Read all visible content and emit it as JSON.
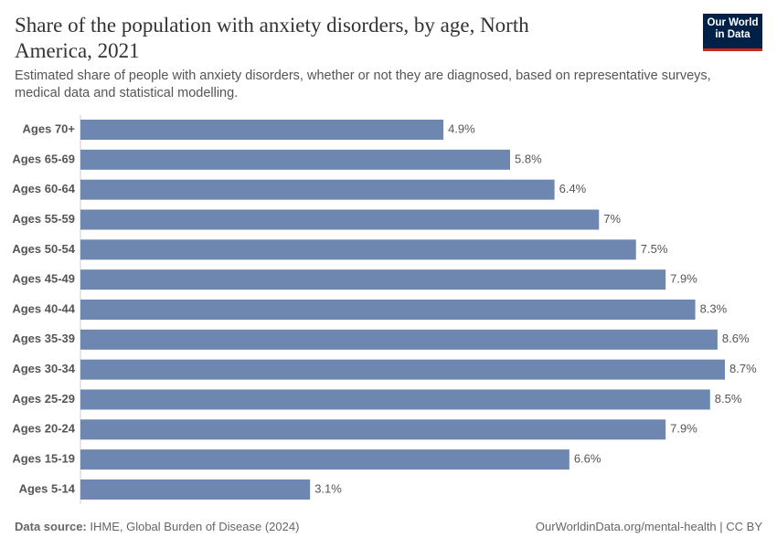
{
  "chart_data": {
    "type": "bar",
    "orientation": "horizontal",
    "title": "Share of the population with anxiety disorders, by age, North America, 2021",
    "subtitle": "Estimated share of people with anxiety disorders, whether or not they are diagnosed, based on representative surveys, medical data and statistical modelling.",
    "categories": [
      "Ages 70+",
      "Ages 65-69",
      "Ages 60-64",
      "Ages 55-59",
      "Ages 50-54",
      "Ages 45-49",
      "Ages 40-44",
      "Ages 35-39",
      "Ages 30-34",
      "Ages 25-29",
      "Ages 20-24",
      "Ages 15-19",
      "Ages 5-14"
    ],
    "values": [
      4.9,
      5.8,
      6.4,
      7,
      7.5,
      7.9,
      8.3,
      8.6,
      8.7,
      8.5,
      7.9,
      6.6,
      3.1
    ],
    "value_labels": [
      "4.9%",
      "5.8%",
      "6.4%",
      "7%",
      "7.5%",
      "7.9%",
      "8.3%",
      "8.6%",
      "8.7%",
      "8.5%",
      "7.9%",
      "6.6%",
      "3.1%"
    ],
    "color": "#6d87b0",
    "source_label": "Data source:",
    "source": "IHME, Global Burden of Disease (2024)",
    "credit": "OurWorldinData.org/mental-health | CC BY"
  },
  "logo": {
    "line1": "Our World",
    "line2": "in Data"
  }
}
